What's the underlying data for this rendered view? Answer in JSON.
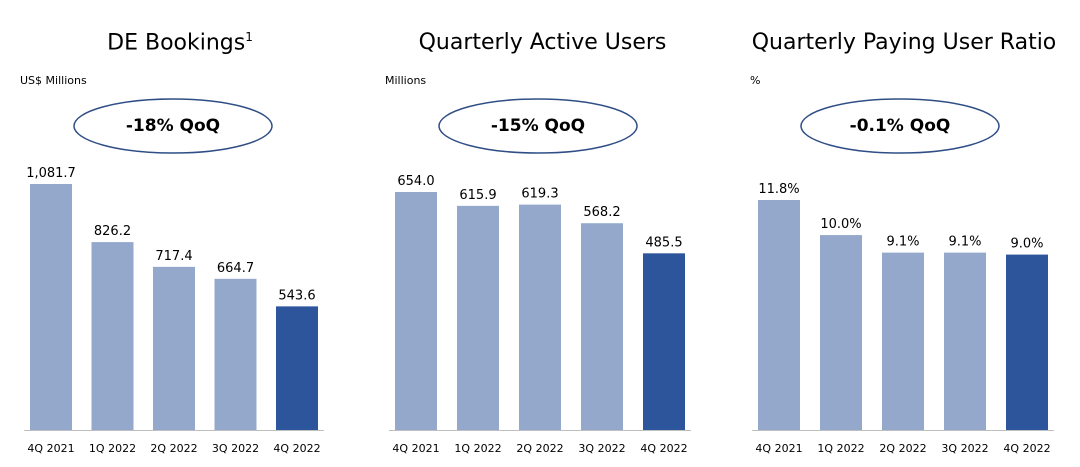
{
  "colors": {
    "bar": "#93A8CB",
    "highlight": "#2D559C",
    "ellipse_stroke": "#2F4E86"
  },
  "chart_data": [
    {
      "type": "bar",
      "title": "DE Bookings",
      "title_sup": "1",
      "unit": "US$ Millions",
      "annotation": "-18% QoQ",
      "categories": [
        "4Q 2021",
        "1Q 2022",
        "2Q 2022",
        "3Q 2022",
        "4Q 2022"
      ],
      "values": [
        1081.7,
        826.2,
        717.4,
        664.7,
        543.6
      ],
      "labels": [
        "1,081.7",
        "826.2",
        "717.4",
        "664.7",
        "543.6"
      ],
      "highlight_index": 4
    },
    {
      "type": "bar",
      "title": "Quarterly Active Users",
      "unit": "Millions",
      "annotation": "-15% QoQ",
      "categories": [
        "4Q 2021",
        "1Q 2022",
        "2Q 2022",
        "3Q 2022",
        "4Q 2022"
      ],
      "values": [
        654.0,
        615.9,
        619.3,
        568.2,
        485.5
      ],
      "labels": [
        "654.0",
        "615.9",
        "619.3",
        "568.2",
        "485.5"
      ],
      "highlight_index": 4
    },
    {
      "type": "bar",
      "title": "Quarterly Paying User Ratio",
      "unit": "%",
      "annotation": "-0.1% QoQ",
      "categories": [
        "4Q 2021",
        "1Q 2022",
        "2Q 2022",
        "3Q 2022",
        "4Q 2022"
      ],
      "values": [
        11.8,
        10.0,
        9.1,
        9.1,
        9.0
      ],
      "labels": [
        "11.8%",
        "10.0%",
        "9.1%",
        "9.1%",
        "9.0%"
      ],
      "highlight_index": 4
    }
  ]
}
